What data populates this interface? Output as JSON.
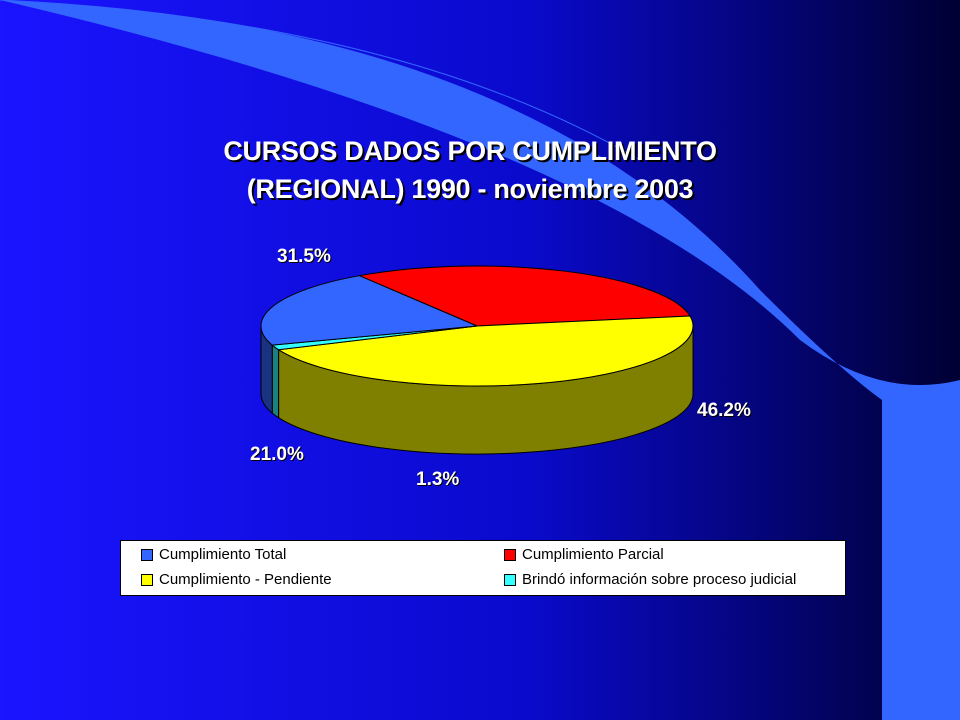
{
  "colors": {
    "background_left": "#1a14ff",
    "background_right": "#000033",
    "wave": "#3366ff"
  },
  "chart_data": {
    "type": "pie",
    "title": "CURSOS DADOS POR CUMPLIMIENTO (REGIONAL) 1990 - noviembre 2003",
    "title_lines": [
      "CURSOS DADOS POR CUMPLIMIENTO",
      "(REGIONAL) 1990 - noviembre 2003"
    ],
    "style": "3d",
    "legend_position": "bottom",
    "slices": [
      {
        "name": "Cumplimiento Total",
        "value": 21.0,
        "label": "21.0%",
        "color": "#3366ff",
        "side_color": "#1a3380"
      },
      {
        "name": "Cumplimiento Parcial",
        "value": 31.5,
        "label": "31.5%",
        "color": "#ff0000",
        "side_color": "#800000"
      },
      {
        "name": "Cumplimiento - Pendiente",
        "value": 46.2,
        "label": "46.2%",
        "color": "#ffff00",
        "side_color": "#808000"
      },
      {
        "name": "Brindó información sobre proceso judicial",
        "value": 1.3,
        "label": "1.3%",
        "color": "#33ffff",
        "side_color": "#1a8080"
      }
    ]
  }
}
